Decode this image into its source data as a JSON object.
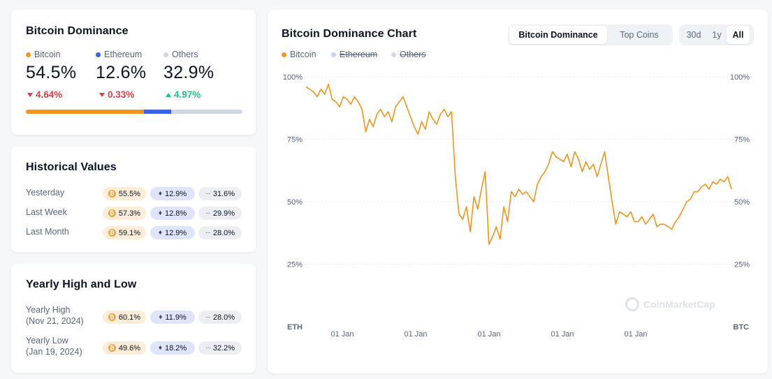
{
  "dominance": {
    "title": "Bitcoin Dominance",
    "items": [
      {
        "name": "Bitcoin",
        "value": "54.5%",
        "change": "4.64%",
        "dir": "down",
        "color": "#f7931a",
        "share": 54.5
      },
      {
        "name": "Ethereum",
        "value": "12.6%",
        "change": "0.33%",
        "dir": "down",
        "color": "#3861fb",
        "share": 12.6
      },
      {
        "name": "Others",
        "value": "32.9%",
        "change": "4.97%",
        "dir": "up",
        "color": "#cfd6e4",
        "share": 32.9
      }
    ]
  },
  "historical": {
    "title": "Historical Values",
    "rows": [
      {
        "label": "Yesterday",
        "btc": "55.5%",
        "eth": "12.9%",
        "others": "31.6%"
      },
      {
        "label": "Last Week",
        "btc": "57.3%",
        "eth": "12.8%",
        "others": "29.9%"
      },
      {
        "label": "Last Month",
        "btc": "59.1%",
        "eth": "12.9%",
        "others": "28.0%"
      }
    ]
  },
  "yearly": {
    "title": "Yearly High and Low",
    "rows": [
      {
        "label": "Yearly High",
        "date": "(Nov 21, 2024)",
        "btc": "60.1%",
        "eth": "11.9%",
        "others": "28.0%"
      },
      {
        "label": "Yearly Low",
        "date": "(Jan 19, 2024)",
        "btc": "49.6%",
        "eth": "18.2%",
        "others": "32.2%"
      }
    ]
  },
  "chart_card": {
    "title": "Bitcoin Dominance Chart",
    "view_tabs": [
      "Bitcoin Dominance",
      "Top Coins"
    ],
    "active_view": "Bitcoin Dominance",
    "range_tabs": [
      "30d",
      "1y",
      "All"
    ],
    "active_range": "All",
    "legend": [
      {
        "name": "Bitcoin",
        "color": "#f7931a",
        "enabled": true
      },
      {
        "name": "Ethereum",
        "color": "#c4d0f5",
        "enabled": false
      },
      {
        "name": "Others",
        "color": "#d5d9e2",
        "enabled": false
      }
    ],
    "left_axis_name": "ETH",
    "right_axis_name": "BTC",
    "watermark": "CoinMarketCap"
  },
  "chart_data": {
    "type": "line",
    "series": [
      {
        "name": "Bitcoin",
        "color": "#f7931a"
      }
    ],
    "x_tick_labels": [
      "01 Jan",
      "01 Jan",
      "01 Jan",
      "01 Jan",
      "01 Jan"
    ],
    "y_tick_labels": [
      "100%",
      "75%",
      "50%",
      "25%"
    ],
    "y_ticks": [
      100,
      75,
      50,
      25
    ],
    "ylim": [
      0,
      100
    ],
    "grid": true,
    "values": [
      96,
      95,
      94,
      92,
      95,
      93,
      97,
      91,
      90,
      88,
      92,
      91,
      89,
      92,
      90,
      87,
      78,
      83,
      80,
      85,
      87,
      84,
      86,
      82,
      88,
      90,
      92,
      88,
      84,
      80,
      77,
      82,
      79,
      86,
      83,
      81,
      85,
      87,
      84,
      86,
      60,
      45,
      43,
      48,
      38,
      52,
      47,
      55,
      62,
      33,
      36,
      40,
      35,
      48,
      42,
      54,
      52,
      55,
      53,
      54,
      52,
      50,
      57,
      60,
      62,
      65,
      70,
      68,
      67,
      66,
      69,
      64,
      70,
      67,
      62,
      66,
      63,
      65,
      60,
      65,
      70,
      60,
      50,
      41,
      46,
      45,
      44,
      46,
      42,
      42,
      44,
      41,
      43,
      45,
      40,
      41,
      41,
      40,
      39,
      42,
      44,
      47,
      50,
      51,
      54,
      54,
      56,
      57,
      55,
      58,
      57,
      59,
      58,
      60,
      55
    ]
  }
}
